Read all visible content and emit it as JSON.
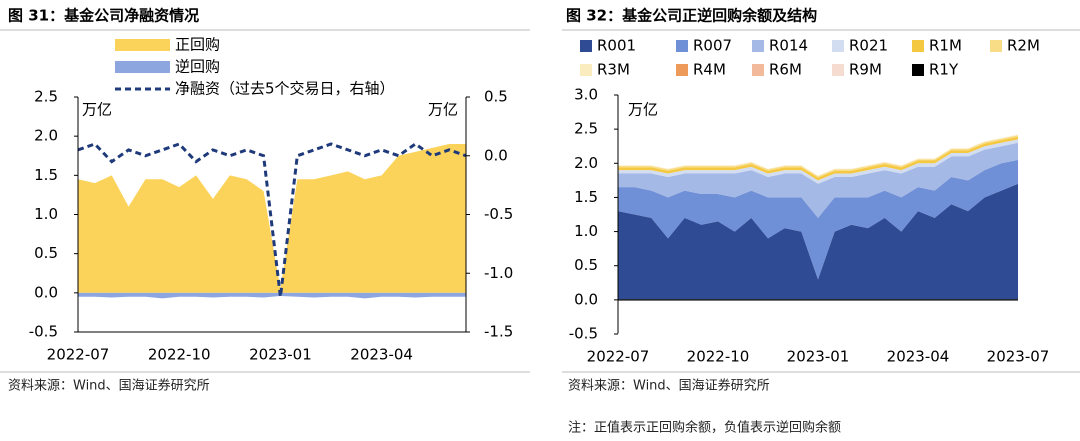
{
  "chart_data": [
    {
      "type": "area",
      "title": "图 31：基金公司净融资情况",
      "y_unit": "万亿",
      "y2_unit": "万亿",
      "source": "资料来源：Wind、国海证券研究所",
      "categories": [
        "2022-07",
        null,
        null,
        null,
        null,
        null,
        "2022-10",
        null,
        null,
        null,
        null,
        null,
        "2023-01",
        null,
        null,
        null,
        null,
        null,
        "2023-04",
        null,
        null,
        null,
        null,
        null
      ],
      "series": [
        {
          "name": "正回购",
          "color": "#fbd35a",
          "values": [
            1.45,
            1.4,
            1.5,
            1.1,
            1.45,
            1.45,
            1.35,
            1.5,
            1.2,
            1.5,
            1.45,
            1.3,
            0.05,
            1.45,
            1.45,
            1.5,
            1.55,
            1.45,
            1.5,
            1.75,
            1.8,
            1.85,
            1.9,
            1.9
          ]
        },
        {
          "name": "逆回购",
          "color": "#8ea6e0",
          "values": [
            -0.05,
            -0.05,
            -0.06,
            -0.05,
            -0.05,
            -0.07,
            -0.05,
            -0.05,
            -0.06,
            -0.05,
            -0.05,
            -0.06,
            -0.04,
            -0.05,
            -0.06,
            -0.05,
            -0.05,
            -0.07,
            -0.05,
            -0.05,
            -0.06,
            -0.05,
            -0.05,
            -0.05
          ]
        },
        {
          "name": "净融资（过去5个交易日，右轴）",
          "color": "#1f3a7a",
          "type": "line",
          "axis": "y2",
          "values": [
            0.05,
            0.1,
            -0.05,
            0.05,
            0.0,
            0.05,
            0.1,
            -0.05,
            0.05,
            0.0,
            0.05,
            0.0,
            -1.2,
            0.0,
            0.05,
            0.1,
            0.05,
            0.0,
            0.05,
            0.0,
            0.1,
            0.0,
            0.05,
            0.0
          ]
        }
      ],
      "ylim": [
        -0.5,
        2.5
      ],
      "yticks": [
        -0.5,
        {
          "value": 0,
          "label": "0.0"
        },
        0.5,
        {
          "value": 1,
          "label": "1.0"
        },
        1.5,
        {
          "value": 2,
          "label": "2.0"
        },
        2.5
      ],
      "y2lim": [
        -1.5,
        0.5
      ],
      "y2ticks": [
        -1.5,
        {
          "value": -1,
          "label": "-1.0"
        },
        -0.5,
        {
          "value": 0,
          "label": "0.0"
        },
        0.5
      ]
    },
    {
      "type": "area",
      "title": "图 32：基金公司正逆回购余额及结构",
      "y_unit": "万亿",
      "source": "资料来源：Wind、国海证券研究所",
      "note": "注：正值表示正回购余额，负值表示逆回购余额",
      "categories": [
        "2022-07",
        null,
        null,
        null,
        null,
        null,
        "2022-10",
        null,
        null,
        null,
        null,
        null,
        "2023-01",
        null,
        null,
        null,
        null,
        null,
        "2023-04",
        null,
        null,
        null,
        null,
        null,
        "2023-07"
      ],
      "series": [
        {
          "name": "R001",
          "color": "#2f4b94",
          "values": [
            1.3,
            1.25,
            1.2,
            0.9,
            1.2,
            1.1,
            1.15,
            1.0,
            1.2,
            0.9,
            1.05,
            1.0,
            0.3,
            1.0,
            1.1,
            1.05,
            1.2,
            1.0,
            1.3,
            1.2,
            1.4,
            1.3,
            1.5,
            1.6,
            1.7
          ]
        },
        {
          "name": "R007",
          "color": "#6f8fd6",
          "values": [
            0.35,
            0.4,
            0.4,
            0.6,
            0.4,
            0.45,
            0.4,
            0.5,
            0.4,
            0.6,
            0.45,
            0.5,
            0.9,
            0.5,
            0.4,
            0.45,
            0.4,
            0.5,
            0.35,
            0.4,
            0.4,
            0.45,
            0.4,
            0.4,
            0.35
          ]
        },
        {
          "name": "R014",
          "color": "#a4b9e6",
          "values": [
            0.2,
            0.2,
            0.25,
            0.3,
            0.25,
            0.3,
            0.3,
            0.35,
            0.3,
            0.3,
            0.35,
            0.35,
            0.5,
            0.3,
            0.3,
            0.35,
            0.3,
            0.35,
            0.3,
            0.35,
            0.3,
            0.35,
            0.3,
            0.25,
            0.25
          ]
        },
        {
          "name": "R021",
          "color": "#d3ddf2",
          "values": [
            0.05,
            0.05,
            0.05,
            0.05,
            0.05,
            0.05,
            0.05,
            0.05,
            0.05,
            0.05,
            0.05,
            0.05,
            0.05,
            0.05,
            0.05,
            0.05,
            0.05,
            0.05,
            0.05,
            0.05,
            0.05,
            0.05,
            0.05,
            0.05,
            0.05
          ]
        },
        {
          "name": "R1M",
          "color": "#f5c842",
          "values": [
            0.04,
            0.04,
            0.04,
            0.04,
            0.04,
            0.04,
            0.04,
            0.04,
            0.04,
            0.04,
            0.04,
            0.04,
            0.04,
            0.04,
            0.04,
            0.04,
            0.04,
            0.04,
            0.04,
            0.04,
            0.04,
            0.04,
            0.04,
            0.04,
            0.04
          ]
        },
        {
          "name": "R2M",
          "color": "#f8dc86",
          "values": [
            0.02,
            0.02,
            0.02,
            0.02,
            0.02,
            0.02,
            0.02,
            0.02,
            0.02,
            0.02,
            0.02,
            0.02,
            0.02,
            0.02,
            0.02,
            0.02,
            0.02,
            0.02,
            0.02,
            0.02,
            0.02,
            0.02,
            0.02,
            0.02,
            0.02
          ]
        },
        {
          "name": "R3M",
          "color": "#fbecc0",
          "values": [
            0.01,
            0.01,
            0.01,
            0.01,
            0.01,
            0.01,
            0.01,
            0.01,
            0.01,
            0.01,
            0.01,
            0.01,
            0.01,
            0.01,
            0.01,
            0.01,
            0.01,
            0.01,
            0.01,
            0.01,
            0.01,
            0.01,
            0.01,
            0.01,
            0.01
          ]
        },
        {
          "name": "R4M",
          "color": "#ee9a5a",
          "values": [
            0,
            0,
            0,
            0,
            0,
            0,
            0,
            0,
            0,
            0,
            0,
            0,
            0,
            0,
            0,
            0,
            0,
            0,
            0,
            0,
            0,
            0,
            0,
            0,
            0
          ]
        },
        {
          "name": "R6M",
          "color": "#f2b99a",
          "values": [
            0,
            0,
            0,
            0,
            0,
            0,
            0,
            0,
            0,
            0,
            0,
            0,
            0,
            0,
            0,
            0,
            0,
            0,
            0,
            0,
            0,
            0,
            0,
            0,
            0
          ]
        },
        {
          "name": "R9M",
          "color": "#f6dcd0",
          "values": [
            0,
            0,
            0,
            0,
            0,
            0,
            0,
            0,
            0,
            0,
            0,
            0,
            0,
            0,
            0,
            0,
            0,
            0,
            0,
            0,
            0,
            0,
            0,
            0,
            0
          ]
        },
        {
          "name": "R1Y",
          "color": "#000000",
          "values": [
            0,
            0,
            0,
            0,
            0,
            0,
            0,
            0,
            0,
            0,
            0,
            0,
            0,
            0,
            0,
            0,
            0,
            0,
            0,
            0,
            0,
            0,
            0,
            0,
            0
          ]
        }
      ],
      "stacked": true,
      "ylim": [
        -0.5,
        3.0
      ],
      "yticks": [
        -0.5,
        {
          "value": 0,
          "label": "0.0"
        },
        0.5,
        {
          "value": 1,
          "label": "1.0"
        },
        1.5,
        {
          "value": 2,
          "label": "2.0"
        },
        2.5,
        {
          "value": 3,
          "label": "3.0"
        }
      ]
    }
  ]
}
